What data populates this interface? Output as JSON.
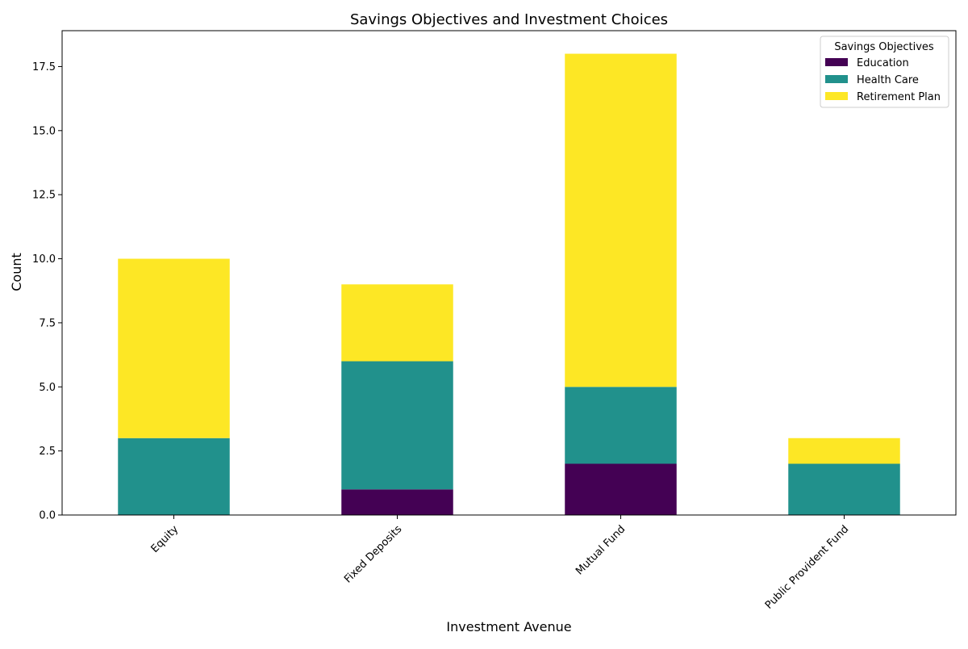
{
  "chart_data": {
    "type": "bar",
    "stacked": true,
    "title": "Savings Objectives and Investment Choices",
    "xlabel": "Investment Avenue",
    "ylabel": "Count",
    "categories": [
      "Equity",
      "Fixed Deposits",
      "Mutual Fund",
      "Public Provident Fund"
    ],
    "series": [
      {
        "name": "Education",
        "color": "#440154",
        "values": [
          0,
          1,
          2,
          0
        ]
      },
      {
        "name": "Health Care",
        "color": "#21918c",
        "values": [
          3,
          5,
          3,
          2
        ]
      },
      {
        "name": "Retirement Plan",
        "color": "#fde725",
        "values": [
          7,
          3,
          13,
          1
        ]
      }
    ],
    "ylim": [
      0,
      18.9
    ],
    "yticks": [
      0.0,
      2.5,
      5.0,
      7.5,
      10.0,
      12.5,
      15.0,
      17.5
    ],
    "ytick_labels": [
      "0.0",
      "2.5",
      "5.0",
      "7.5",
      "10.0",
      "12.5",
      "15.0",
      "17.5"
    ],
    "grid": false,
    "legend": {
      "title": "Savings Objectives",
      "position": "top-right"
    }
  }
}
